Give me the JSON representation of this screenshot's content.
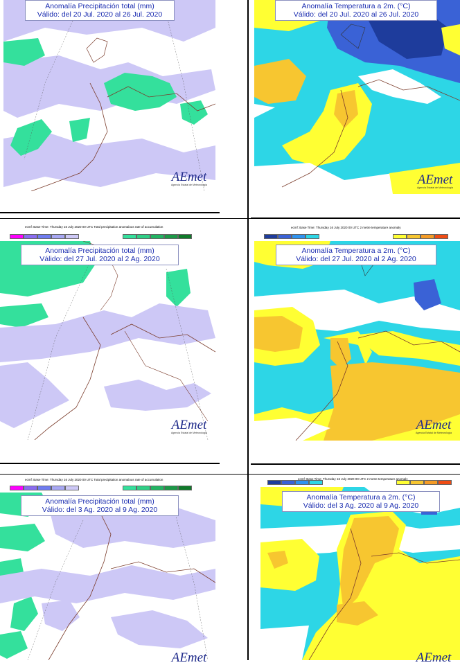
{
  "panels": {
    "p1": {
      "title": "Anomalía Precipitación total (mm)",
      "valid": "Válido: del 20 Jul. 2020 al 26 Jul. 2020"
    },
    "p2": {
      "title": "Anomalía Temperatura a 2m. (°C)",
      "valid": "Válido: del 20 Jul. 2020 al 26 Jul. 2020"
    },
    "p3": {
      "title": "Anomalía Precipitación total (mm)",
      "valid": "Válido: del 27 Jul. 2020 al 2 Ag. 2020"
    },
    "p4": {
      "title": "Anomalía Temperatura a 2m. (°C)",
      "valid": "Válido: del 27 Jul. 2020 al 2 Ag. 2020"
    },
    "p5": {
      "title": "Anomalía Precipitación total (mm)",
      "valid": "Válido: del 3 Ag. 2020 al 9 Ag. 2020"
    },
    "p6": {
      "title": "Anomalía Temperatura a 2m. (°C)",
      "valid": "Válido: del 3 Ag. 2020 al 9 Ag. 2020"
    }
  },
  "header": {
    "precip": "ecmf: Base Time: Thursday 16 July 2020 00 UTC Total precipitation anomalous rate of accumulation",
    "temp": "ecmf: Base Time: Thursday 16 July 2020 00 UTC 2 metre temperature anomaly"
  },
  "logo": {
    "name": "AEmet",
    "sub": "Agencia Estatal de Meteorología"
  },
  "colors": {
    "precip_dry": [
      "#ff00ff",
      "#8a6cf0",
      "#6f7cf0",
      "#a7a7f3",
      "#cdc8f6"
    ],
    "precip_wet": [
      "#34e09c",
      "#2fcf86",
      "#22b463",
      "#1c9947",
      "#0f7a2a"
    ],
    "temp_cold": [
      "#1e3c9c",
      "#3a62d6",
      "#2f93f0",
      "#2dd6e6"
    ],
    "temp_warm": [
      "#ffff33",
      "#f7c630",
      "#f59c26",
      "#ef4c14"
    ],
    "map_bg": "#ffffff",
    "title_text": "#1b2db0"
  }
}
